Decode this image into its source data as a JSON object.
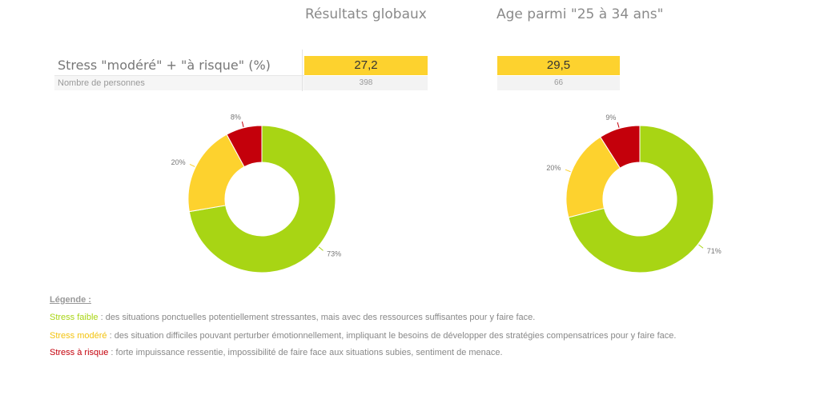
{
  "columns": {
    "global_title": "Résultats globaux",
    "age_title": "Age parmi \"25 à 34 ans\""
  },
  "table": {
    "metric_label": "Stress \"modéré\" + \"à risque\" (%)",
    "count_label": "Nombre de personnes",
    "global_value": "27,2",
    "global_count": "398",
    "age_value": "29,5",
    "age_count": "66"
  },
  "chart_data": [
    {
      "type": "pie",
      "variant": "donut",
      "slices": [
        {
          "label": "Stress faible",
          "value": 73,
          "pct_label": "73%",
          "color": "#a8d514"
        },
        {
          "label": "Stress modéré",
          "value": 20,
          "pct_label": "20%",
          "color": "#fdd22e"
        },
        {
          "label": "Stress à risque",
          "value": 8,
          "pct_label": "8%",
          "color": "#c4000b"
        }
      ]
    },
    {
      "type": "pie",
      "variant": "donut",
      "slices": [
        {
          "label": "Stress faible",
          "value": 71,
          "pct_label": "71%",
          "color": "#a8d514"
        },
        {
          "label": "Stress modéré",
          "value": 20,
          "pct_label": "20%",
          "color": "#fdd22e"
        },
        {
          "label": "Stress à risque",
          "value": 9,
          "pct_label": "9%",
          "color": "#c4000b"
        }
      ]
    }
  ],
  "legend": {
    "title": "Légende :",
    "items": [
      {
        "key": "Stress faible",
        "text": " : des situations ponctuelles potentiellement stressantes, mais avec des ressources suffisantes pour y faire face."
      },
      {
        "key": "Stress modéré",
        "text": " : des situation difficiles pouvant perturber émotionnellement, impliquant le besoins de développer des stratégies compensatrices pour y faire face."
      },
      {
        "key": "Stress à risque",
        "text": " : forte impuissance ressentie, impossibilité de faire face aux situations subies, sentiment de menace."
      }
    ]
  },
  "colors": {
    "faible": "#a8d514",
    "modere": "#fdd22e",
    "risque": "#c4000b",
    "highlight": "#fdd22e"
  }
}
